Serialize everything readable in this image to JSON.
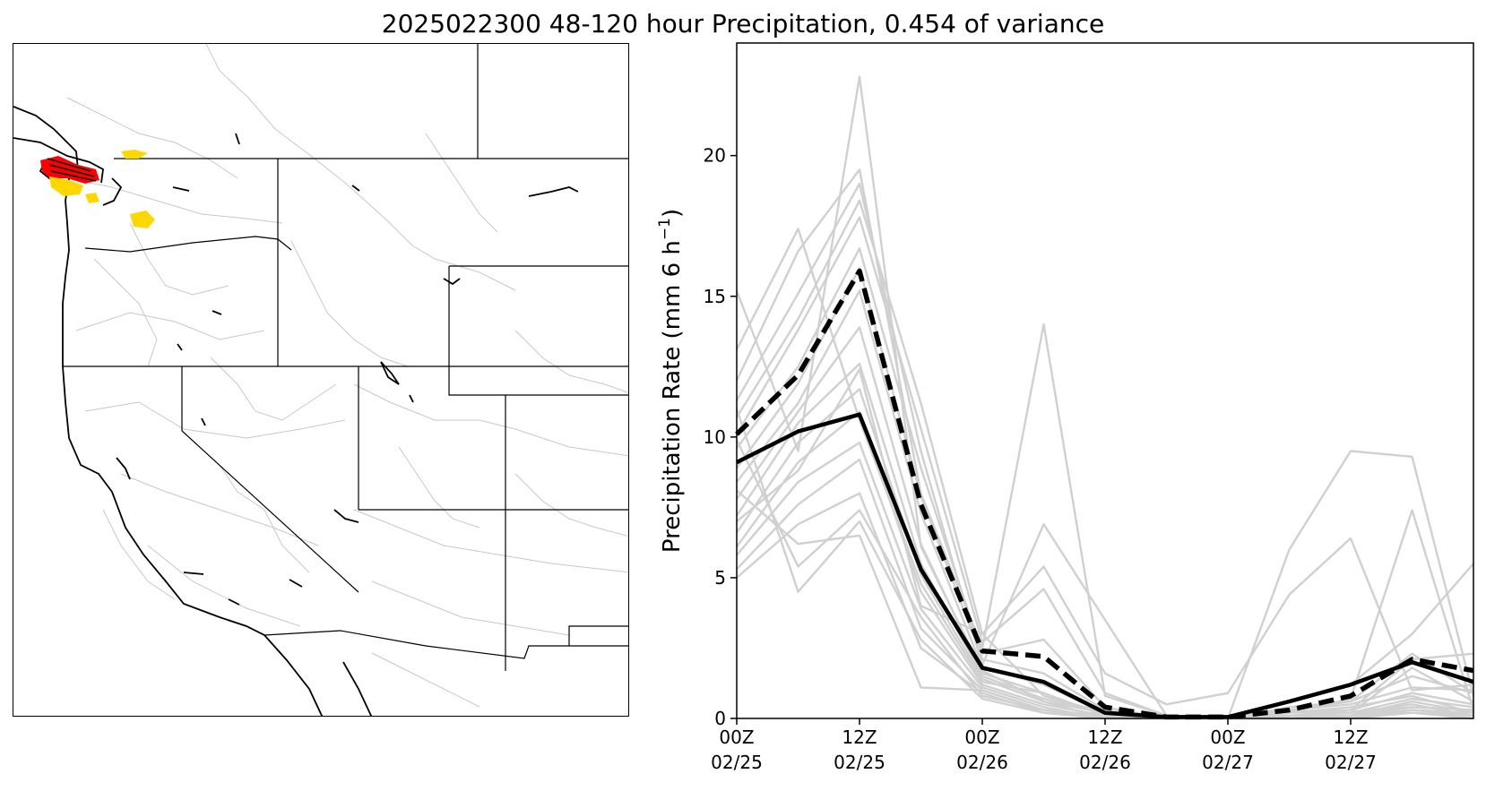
{
  "figure": {
    "title": "2025022300 48-120 hour Precipitation, 0.454 of variance"
  },
  "map_panel": {
    "type": "map",
    "region": "Western United States",
    "highlight_colors": {
      "high": "#ff0000",
      "medium": "#ffd700"
    },
    "outline_color": "#000000",
    "basin_color": "#c8c8c8"
  },
  "chart_data": {
    "type": "line",
    "title": "",
    "xlabel": "",
    "ylabel": "Precipitation Rate (mm 6 h",
    "ylabel_superscript": "−1",
    "ylabel_close": ")",
    "ylim": [
      0,
      24
    ],
    "xlim": [
      0,
      18
    ],
    "yticks": [
      0,
      5,
      10,
      15,
      20
    ],
    "xticks": [
      {
        "x": 0,
        "line1": "00Z",
        "line2": "02/25"
      },
      {
        "x": 3,
        "line1": "12Z",
        "line2": "02/25"
      },
      {
        "x": 6,
        "line1": "00Z",
        "line2": "02/26"
      },
      {
        "x": 9,
        "line1": "12Z",
        "line2": "02/26"
      },
      {
        "x": 12,
        "line1": "00Z",
        "line2": "02/27"
      },
      {
        "x": 15,
        "line1": "12Z",
        "line2": "02/27"
      }
    ],
    "x": [
      0,
      1.5,
      3,
      4.5,
      6,
      7.5,
      9,
      10.5,
      12,
      13.5,
      15,
      16.5,
      18
    ],
    "grid": false,
    "legend": "none",
    "series_styles": {
      "solid": {
        "color": "#000000",
        "width": 4.5
      },
      "dashed": {
        "color": "#000000",
        "width": 5.5,
        "dash": "17,8"
      },
      "members": {
        "color": "#d0d0d0",
        "width": 2.4
      }
    },
    "series": [
      {
        "style": "solid",
        "values": [
          9.1,
          10.2,
          10.8,
          5.3,
          1.8,
          1.3,
          0.2,
          0.05,
          0.05,
          0.6,
          1.2,
          2.0,
          1.3
        ]
      },
      {
        "style": "dashed",
        "values": [
          10.1,
          12.2,
          15.9,
          7.6,
          2.4,
          2.2,
          0.4,
          0.05,
          0.05,
          0.3,
          0.8,
          2.1,
          1.7
        ]
      }
    ],
    "members": [
      [
        15.2,
        9.5,
        22.8,
        6.1,
        1.7,
        0.6,
        0.2,
        0.0,
        0.0,
        0.1,
        0.3,
        0.9,
        0.5
      ],
      [
        13.1,
        17.4,
        10.6,
        4.8,
        1.3,
        0.9,
        0.1,
        0.0,
        0.0,
        0.3,
        0.2,
        1.8,
        0.6
      ],
      [
        12.0,
        16.6,
        19.5,
        8.0,
        2.5,
        14.0,
        0.8,
        0.1,
        0.0,
        0.4,
        0.6,
        2.3,
        0.9
      ],
      [
        11.3,
        15.1,
        19.0,
        9.5,
        1.9,
        6.9,
        3.5,
        0.1,
        0.0,
        6.0,
        9.5,
        9.3,
        0.8
      ],
      [
        10.7,
        14.2,
        18.4,
        11.2,
        3.0,
        5.4,
        1.6,
        0.5,
        0.9,
        4.4,
        6.4,
        1.0,
        1.2
      ],
      [
        10.1,
        13.8,
        17.8,
        10.3,
        2.7,
        4.6,
        0.9,
        0.1,
        0.0,
        0.2,
        0.7,
        7.4,
        0.3
      ],
      [
        9.6,
        12.5,
        16.7,
        8.9,
        2.3,
        2.8,
        0.4,
        0.0,
        0.0,
        0.6,
        1.2,
        3.0,
        5.5
      ],
      [
        8.9,
        11.9,
        16.0,
        7.9,
        2.1,
        1.6,
        0.3,
        0.0,
        0.0,
        0.2,
        0.3,
        2.1,
        2.3
      ],
      [
        8.4,
        11.2,
        15.2,
        7.3,
        1.8,
        1.2,
        0.2,
        0.0,
        0.0,
        0.3,
        0.5,
        1.1,
        1.0
      ],
      [
        7.8,
        10.9,
        13.9,
        6.2,
        1.6,
        0.9,
        0.1,
        0.0,
        0.0,
        0.1,
        0.2,
        0.7,
        0.4
      ],
      [
        7.2,
        10.5,
        12.6,
        5.5,
        1.5,
        0.7,
        0.2,
        0.0,
        0.0,
        0.0,
        0.1,
        0.6,
        0.2
      ],
      [
        6.6,
        9.8,
        11.7,
        5.1,
        1.4,
        0.6,
        0.0,
        0.0,
        0.0,
        0.1,
        0.2,
        0.4,
        0.3
      ],
      [
        6.1,
        9.1,
        10.9,
        4.5,
        1.2,
        0.5,
        0.1,
        0.0,
        0.0,
        0.0,
        0.1,
        0.3,
        0.1
      ],
      [
        5.8,
        8.4,
        9.8,
        3.9,
        1.1,
        0.4,
        0.0,
        0.0,
        0.0,
        0.2,
        0.4,
        0.8,
        0.2
      ],
      [
        5.3,
        7.6,
        9.2,
        3.2,
        1.0,
        0.3,
        0.0,
        0.0,
        0.0,
        0.1,
        0.2,
        0.5,
        0.1
      ],
      [
        5.0,
        6.9,
        8.0,
        2.5,
        0.9,
        0.2,
        0.0,
        0.0,
        0.0,
        0.0,
        0.1,
        0.2,
        0.0
      ],
      [
        9.9,
        5.4,
        7.4,
        3.6,
        0.8,
        0.3,
        0.0,
        0.0,
        0.0,
        0.0,
        0.0,
        0.3,
        0.2
      ],
      [
        11.0,
        4.5,
        7.0,
        2.8,
        0.7,
        0.2,
        0.0,
        0.0,
        0.0,
        0.1,
        0.1,
        0.4,
        0.3
      ],
      [
        8.1,
        6.2,
        6.5,
        1.1,
        1.0,
        0.3,
        0.1,
        0.0,
        0.0,
        0.0,
        0.0,
        0.2,
        0.1
      ],
      [
        7.0,
        8.8,
        12.4,
        4.0,
        3.0,
        0.8,
        0.2,
        0.0,
        0.0,
        0.3,
        0.6,
        1.5,
        0.9
      ]
    ]
  }
}
